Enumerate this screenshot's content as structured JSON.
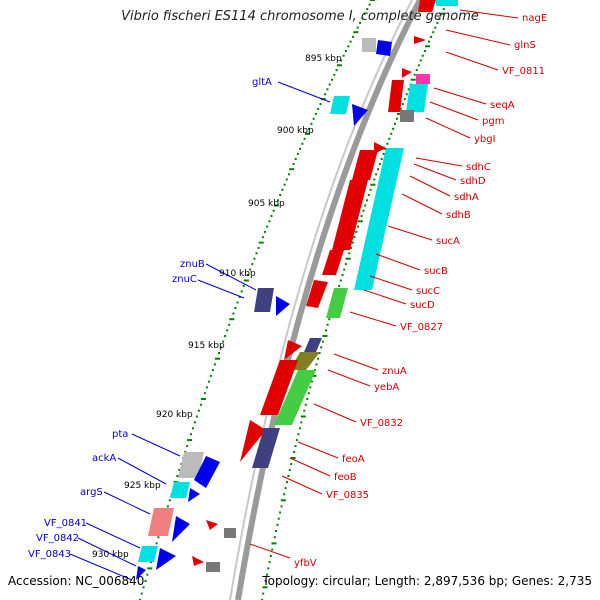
{
  "title": "Vibrio fischeri ES114 chromosome I, complete genome",
  "accession_text": "Accession: NC_006840",
  "topology_text": "Topology: circular; Length: 2,897,536 bp; Genes: 2,735",
  "colors": {
    "forward_strand": "#e00000",
    "reverse_strand": "#0000e8",
    "ruler_ticks": "#008000",
    "backbone": "#888888",
    "label_right": "#cc0000",
    "label_left": "#0000cc"
  },
  "ruler": {
    "unit": "kbp",
    "tick_labels": [
      "895 kbp",
      "900 kbp",
      "905 kbp",
      "910 kbp",
      "915 kbp",
      "920 kbp",
      "925 kbp",
      "930 kbp"
    ]
  },
  "genes_right": [
    {
      "name": "nagE",
      "strand": "+"
    },
    {
      "name": "glnS",
      "strand": "+"
    },
    {
      "name": "VF_0811",
      "strand": "+"
    },
    {
      "name": "seqA",
      "strand": "+"
    },
    {
      "name": "pgm",
      "strand": "+"
    },
    {
      "name": "ybgI",
      "strand": "+"
    },
    {
      "name": "sdhC",
      "strand": "+"
    },
    {
      "name": "sdhD",
      "strand": "+"
    },
    {
      "name": "sdhA",
      "strand": "+"
    },
    {
      "name": "sdhB",
      "strand": "+"
    },
    {
      "name": "sucA",
      "strand": "+"
    },
    {
      "name": "sucB",
      "strand": "+"
    },
    {
      "name": "sucC",
      "strand": "+"
    },
    {
      "name": "sucD",
      "strand": "+"
    },
    {
      "name": "VF_0827",
      "strand": "+"
    },
    {
      "name": "znuA",
      "strand": "+"
    },
    {
      "name": "yebA",
      "strand": "+"
    },
    {
      "name": "VF_0832",
      "strand": "+"
    },
    {
      "name": "feoA",
      "strand": "+"
    },
    {
      "name": "feoB",
      "strand": "+"
    },
    {
      "name": "VF_0835",
      "strand": "+"
    },
    {
      "name": "yfbV",
      "strand": "+"
    }
  ],
  "genes_left": [
    {
      "name": "gltA",
      "strand": "-"
    },
    {
      "name": "znuB",
      "strand": "-"
    },
    {
      "name": "znuC",
      "strand": "-"
    },
    {
      "name": "pta",
      "strand": "-"
    },
    {
      "name": "ackA",
      "strand": "-"
    },
    {
      "name": "argS",
      "strand": "-"
    },
    {
      "name": "VF_0841",
      "strand": "-"
    },
    {
      "name": "VF_0842",
      "strand": "-"
    },
    {
      "name": "VF_0843",
      "strand": "-"
    }
  ]
}
